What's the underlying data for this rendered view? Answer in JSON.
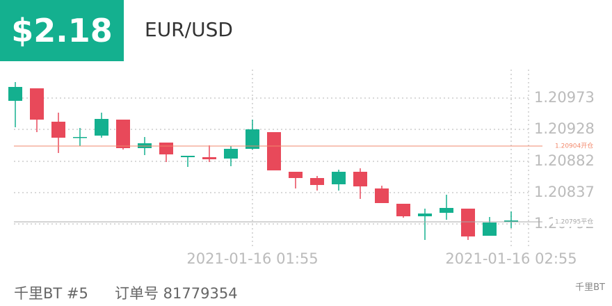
{
  "header": {
    "price": "$2.18",
    "symbol": "EUR/USD"
  },
  "chart_data": {
    "type": "candlestick",
    "categories": [
      null,
      null,
      null,
      null,
      null,
      null,
      null,
      null,
      null,
      null,
      null,
      "2021-01-16 01:55",
      null,
      null,
      null,
      null,
      null,
      null,
      null,
      null,
      null,
      null,
      null,
      "2021-01-16 02:55"
    ],
    "open": [
      1.20969,
      1.20987,
      1.20939,
      1.20917,
      1.20919,
      1.20942,
      1.20901,
      1.20909,
      1.20888,
      1.20888,
      1.20886,
      1.209,
      1.20924,
      1.20867,
      1.20858,
      1.20849,
      1.20867,
      1.20843,
      1.20821,
      1.20803,
      1.20808,
      1.20814,
      1.20775,
      1.20795
    ],
    "high": [
      1.20996,
      1.20987,
      1.20952,
      1.2093,
      1.20952,
      1.20942,
      1.20917,
      1.20909,
      1.2089,
      1.20905,
      1.20904,
      1.20942,
      1.20924,
      1.20867,
      1.20861,
      1.2087,
      1.20872,
      1.20847,
      1.20821,
      1.20814,
      1.20834,
      1.20814,
      1.20802,
      1.2081
    ],
    "low": [
      1.20931,
      1.20924,
      1.20894,
      1.20904,
      1.20916,
      1.20899,
      1.20891,
      1.20881,
      1.20874,
      1.20881,
      1.20875,
      1.20899,
      1.20869,
      1.20843,
      1.2084,
      1.2084,
      1.20828,
      1.20822,
      1.20801,
      1.20769,
      1.20798,
      1.20769,
      1.20775,
      1.20786
    ],
    "close": [
      1.20989,
      1.20942,
      1.20916,
      1.20917,
      1.20943,
      1.20901,
      1.20908,
      1.20892,
      1.2089,
      1.20885,
      1.209,
      1.20928,
      1.20869,
      1.20858,
      1.20848,
      1.20867,
      1.20846,
      1.20822,
      1.20803,
      1.20807,
      1.20815,
      1.20774,
      1.20794,
      1.20797
    ],
    "up_color": "#14b08f",
    "down_color": "#e8495a",
    "ylim": [
      1.20769,
      1.21019
    ],
    "yticks": [
      1.20973,
      1.20928,
      1.20882,
      1.20837,
      1.20792
    ],
    "grid": true,
    "lines": [
      {
        "value": 1.20904,
        "label": "1.20904开仓",
        "color": "#f2896c"
      },
      {
        "value": 1.20795,
        "label": "1.20795平仓",
        "color": "#a8a8a8"
      }
    ]
  },
  "footer": {
    "account": "千里BT #5",
    "order": "订单号 81779354",
    "watermark": "千里BT"
  }
}
